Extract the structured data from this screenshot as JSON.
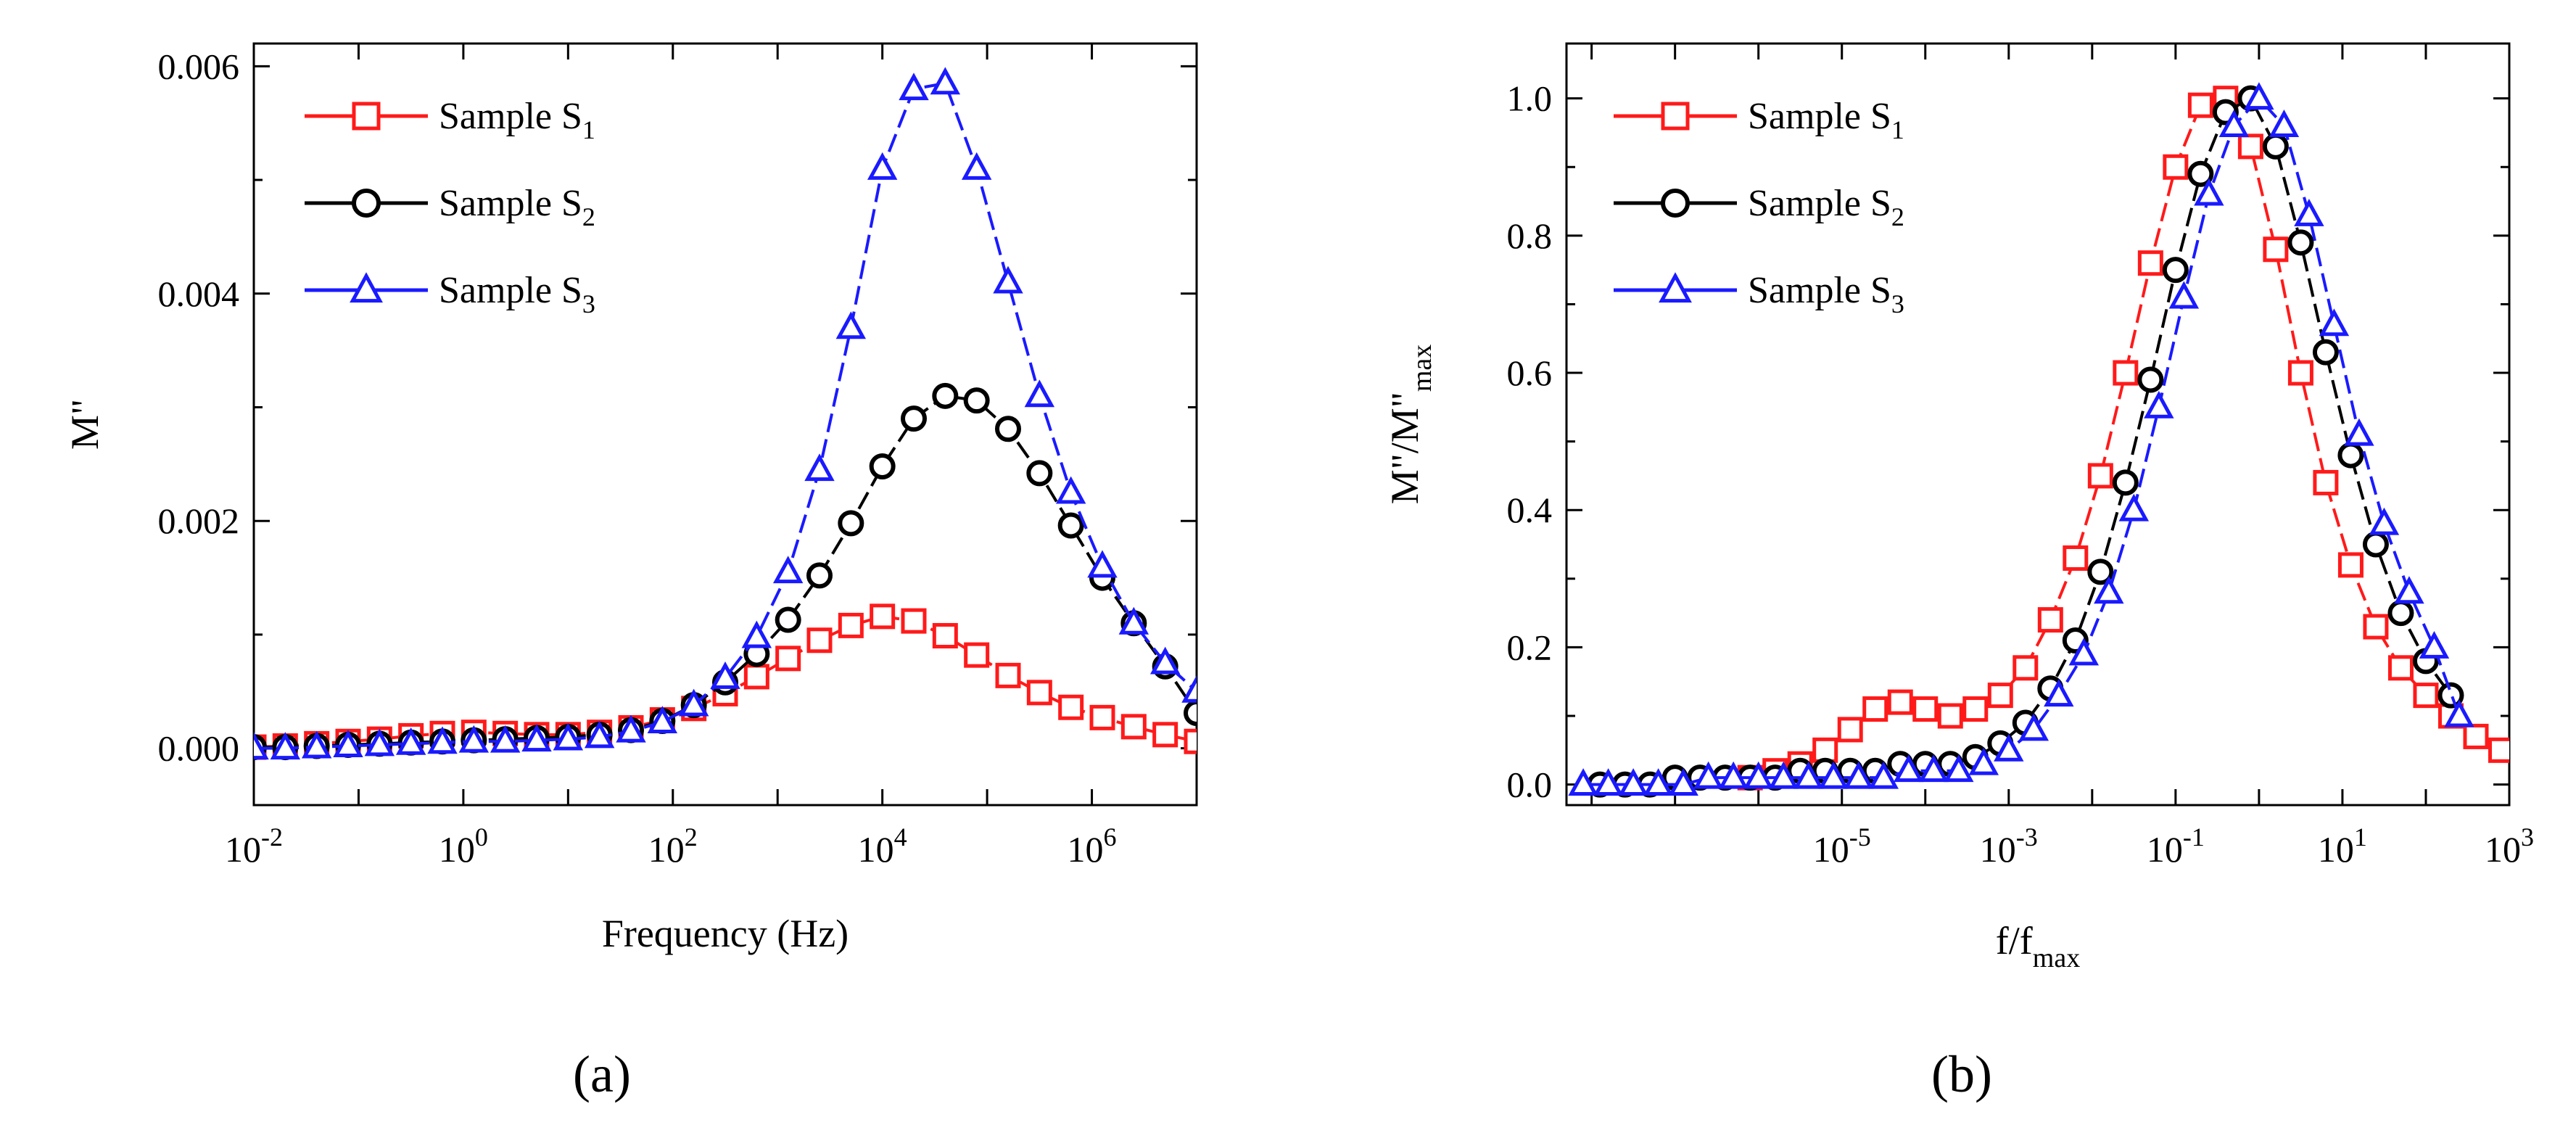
{
  "chart_data": [
    {
      "id": "a",
      "type": "scatter",
      "panel_label": "(a)",
      "xlabel": "Frequency (Hz)",
      "ylabel": "M\"",
      "xscale": "log",
      "xlim": [
        0.01,
        10000000
      ],
      "ylim": [
        -0.0005,
        0.0062
      ],
      "xticks": [
        {
          "value": 0.01,
          "base": "10",
          "exp": "-2"
        },
        {
          "value": 1,
          "base": "10",
          "exp": "0"
        },
        {
          "value": 100,
          "base": "10",
          "exp": "2"
        },
        {
          "value": 10000,
          "base": "10",
          "exp": "4"
        },
        {
          "value": 1000000,
          "base": "10",
          "exp": "6"
        }
      ],
      "yticks": [
        {
          "value": 0.0,
          "label": "0.000"
        },
        {
          "value": 0.002,
          "label": "0.002"
        },
        {
          "value": 0.004,
          "label": "0.004"
        },
        {
          "value": 0.006,
          "label": "0.006"
        }
      ],
      "legend": {
        "position": "top-left"
      },
      "series": [
        {
          "name": "Sample S",
          "sub": "1",
          "color": "#ff1a1a",
          "marker": "square",
          "x_log": [
            -2.0,
            -1.7,
            -1.4,
            -1.1,
            -0.8,
            -0.5,
            -0.2,
            0.1,
            0.4,
            0.7,
            1.0,
            1.3,
            1.6,
            1.9,
            2.2,
            2.5,
            2.8,
            3.1,
            3.4,
            3.7,
            4.0,
            4.3,
            4.6,
            4.9,
            5.2,
            5.5,
            5.8,
            6.1,
            6.4,
            6.7,
            7.0
          ],
          "y": [
            1e-05,
            2e-05,
            4e-05,
            6e-05,
            8e-05,
            0.00011,
            0.00013,
            0.00014,
            0.00013,
            0.00012,
            0.00012,
            0.00014,
            0.00018,
            0.00025,
            0.00035,
            0.00048,
            0.00063,
            0.00079,
            0.00095,
            0.00108,
            0.00116,
            0.00112,
            0.00099,
            0.00082,
            0.00064,
            0.00049,
            0.00036,
            0.00027,
            0.00019,
            0.00012,
            6e-05
          ]
        },
        {
          "name": "Sample S",
          "sub": "2",
          "color": "#000000",
          "marker": "circle",
          "x_log": [
            -2.0,
            -1.7,
            -1.4,
            -1.1,
            -0.8,
            -0.5,
            -0.2,
            0.1,
            0.4,
            0.7,
            1.0,
            1.3,
            1.6,
            1.9,
            2.2,
            2.5,
            2.8,
            3.1,
            3.4,
            3.7,
            4.0,
            4.3,
            4.6,
            4.9,
            5.2,
            5.5,
            5.8,
            6.1,
            6.4,
            6.7,
            7.0
          ],
          "y": [
            1e-05,
            1e-05,
            2e-05,
            3e-05,
            4e-05,
            5e-05,
            6e-05,
            7e-05,
            8e-05,
            9e-05,
            0.0001,
            0.00012,
            0.00016,
            0.00024,
            0.00038,
            0.00058,
            0.00083,
            0.00113,
            0.00152,
            0.00198,
            0.00248,
            0.0029,
            0.0031,
            0.00306,
            0.00281,
            0.00242,
            0.00196,
            0.0015,
            0.0011,
            0.00072,
            0.00031
          ]
        },
        {
          "name": "Sample S",
          "sub": "3",
          "color": "#1a1aff",
          "marker": "triangle",
          "x_log": [
            -2.0,
            -1.7,
            -1.4,
            -1.1,
            -0.8,
            -0.5,
            -0.2,
            0.1,
            0.4,
            0.7,
            1.0,
            1.3,
            1.6,
            1.9,
            2.2,
            2.5,
            2.8,
            3.1,
            3.4,
            3.7,
            4.0,
            4.3,
            4.6,
            4.9,
            5.2,
            5.5,
            5.8,
            6.1,
            6.4,
            6.7,
            7.0
          ],
          "y": [
            0.0,
            0.0,
            1e-05,
            2e-05,
            3e-05,
            4e-05,
            5e-05,
            6e-05,
            6e-05,
            7e-05,
            8e-05,
            0.0001,
            0.00015,
            0.00023,
            0.00038,
            0.00062,
            0.00098,
            0.00155,
            0.00245,
            0.0037,
            0.0051,
            0.0058,
            0.00585,
            0.0051,
            0.0041,
            0.0031,
            0.00225,
            0.0016,
            0.0011,
            0.00075,
            0.0005
          ]
        }
      ]
    },
    {
      "id": "b",
      "type": "scatter",
      "panel_label": "(b)",
      "xlabel": "f/f",
      "xlabel_sub": "max",
      "ylabel": "M\"/M\"",
      "ylabel_sub": "max",
      "xscale": "log",
      "xlim": [
        5e-09,
        1000
      ],
      "ylim": [
        -0.03,
        1.08
      ],
      "xticks": [
        {
          "value": 1e-05,
          "base": "10",
          "exp": "-5"
        },
        {
          "value": 0.001,
          "base": "10",
          "exp": "-3"
        },
        {
          "value": 0.1,
          "base": "10",
          "exp": "-1"
        },
        {
          "value": 10,
          "base": "10",
          "exp": "1"
        },
        {
          "value": 1000,
          "base": "10",
          "exp": "3"
        }
      ],
      "yticks": [
        {
          "value": 0.0,
          "label": "0.0"
        },
        {
          "value": 0.2,
          "label": "0.2"
        },
        {
          "value": 0.4,
          "label": "0.4"
        },
        {
          "value": 0.6,
          "label": "0.6"
        },
        {
          "value": 0.8,
          "label": "0.8"
        },
        {
          "value": 1.0,
          "label": "1.0"
        }
      ],
      "legend": {
        "position": "top-left"
      },
      "series": [
        {
          "name": "Sample S",
          "sub": "1",
          "color": "#ff1a1a",
          "marker": "square",
          "x_log": [
            -6.1,
            -5.8,
            -5.5,
            -5.2,
            -4.9,
            -4.6,
            -4.3,
            -4.0,
            -3.7,
            -3.4,
            -3.1,
            -2.8,
            -2.5,
            -2.2,
            -1.9,
            -1.6,
            -1.3,
            -1.0,
            -0.7,
            -0.4,
            -0.1,
            0.2,
            0.5,
            0.8,
            1.1,
            1.4,
            1.7,
            2.0,
            2.3,
            2.6,
            2.9
          ],
          "y": [
            0.01,
            0.02,
            0.03,
            0.05,
            0.08,
            0.11,
            0.12,
            0.11,
            0.1,
            0.11,
            0.13,
            0.17,
            0.24,
            0.33,
            0.45,
            0.6,
            0.76,
            0.9,
            0.99,
            1.0,
            0.93,
            0.78,
            0.6,
            0.44,
            0.32,
            0.23,
            0.17,
            0.13,
            0.1,
            0.07,
            0.05
          ]
        },
        {
          "name": "Sample S",
          "sub": "2",
          "color": "#000000",
          "marker": "circle",
          "x_log": [
            -7.9,
            -7.6,
            -7.3,
            -7.0,
            -6.7,
            -6.4,
            -6.1,
            -5.8,
            -5.5,
            -5.2,
            -4.9,
            -4.6,
            -4.3,
            -4.0,
            -3.7,
            -3.4,
            -3.1,
            -2.8,
            -2.5,
            -2.2,
            -1.9,
            -1.6,
            -1.3,
            -1.0,
            -0.7,
            -0.4,
            -0.1,
            0.2,
            0.5,
            0.8,
            1.1,
            1.4,
            1.7,
            2.0,
            2.3
          ],
          "y": [
            0.0,
            0.0,
            0.0,
            0.01,
            0.01,
            0.01,
            0.01,
            0.01,
            0.02,
            0.02,
            0.02,
            0.02,
            0.03,
            0.03,
            0.03,
            0.04,
            0.06,
            0.09,
            0.14,
            0.21,
            0.31,
            0.44,
            0.59,
            0.75,
            0.89,
            0.98,
            1.0,
            0.93,
            0.79,
            0.63,
            0.48,
            0.35,
            0.25,
            0.18,
            0.13
          ]
        },
        {
          "name": "Sample S",
          "sub": "3",
          "color": "#1a1aff",
          "marker": "triangle",
          "x_log": [
            -8.1,
            -7.8,
            -7.5,
            -7.2,
            -6.9,
            -6.6,
            -6.3,
            -6.0,
            -5.7,
            -5.4,
            -5.1,
            -4.8,
            -4.5,
            -4.2,
            -3.9,
            -3.6,
            -3.3,
            -3.0,
            -2.7,
            -2.4,
            -2.1,
            -1.8,
            -1.5,
            -1.2,
            -0.9,
            -0.6,
            -0.3,
            0.0,
            0.3,
            0.6,
            0.9,
            1.2,
            1.5,
            1.8,
            2.1,
            2.4
          ],
          "y": [
            0.0,
            0.0,
            0.0,
            0.0,
            0.0,
            0.01,
            0.01,
            0.01,
            0.01,
            0.01,
            0.01,
            0.01,
            0.01,
            0.02,
            0.02,
            0.02,
            0.03,
            0.05,
            0.08,
            0.13,
            0.19,
            0.28,
            0.4,
            0.55,
            0.71,
            0.86,
            0.96,
            1.0,
            0.96,
            0.83,
            0.67,
            0.51,
            0.38,
            0.28,
            0.2,
            0.1
          ]
        }
      ]
    }
  ]
}
